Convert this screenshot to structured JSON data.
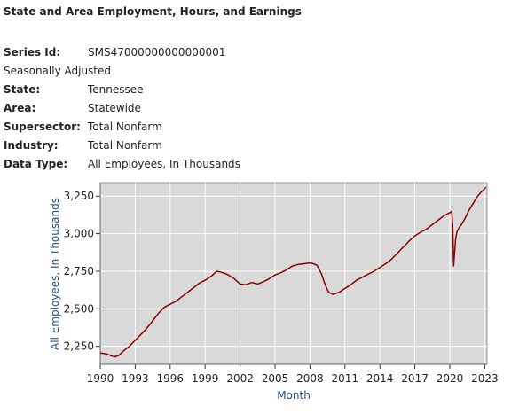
{
  "header": {
    "title": "State and Area Employment, Hours, and Earnings"
  },
  "meta": {
    "series_id_label": "Series Id:",
    "series_id": "SMS47000000000000001",
    "seasonal": "Seasonally Adjusted",
    "state_label": "State:",
    "state": "Tennessee",
    "area_label": "Area:",
    "area": "Statewide",
    "supersector_label": "Supersector:",
    "supersector": "Total Nonfarm",
    "industry_label": "Industry:",
    "industry": "Total Nonfarm",
    "data_type_label": "Data Type:",
    "data_type": "All Employees, In Thousands"
  },
  "chart_data": {
    "type": "line",
    "title": "",
    "xlabel": "Month",
    "ylabel": "All Employees, In Thousands",
    "xlim": [
      1990,
      2023.2
    ],
    "ylim": [
      2130,
      3340
    ],
    "x_ticks": [
      "1990",
      "1993",
      "1996",
      "1999",
      "2002",
      "2005",
      "2008",
      "2011",
      "2014",
      "2017",
      "2020",
      "2023"
    ],
    "y_ticks": [
      "2,250",
      "2,500",
      "2,750",
      "3,000",
      "3,250"
    ],
    "y_tick_values": [
      2250,
      2500,
      2750,
      3000,
      3250
    ],
    "grid": true,
    "line_color": "#8b0000",
    "series": [
      {
        "x": [
          1990.0,
          1990.5,
          1991.0,
          1991.3,
          1991.6,
          1992.0,
          1992.5,
          1993.0,
          1993.5,
          1994.0,
          1994.5,
          1995.0,
          1995.5,
          1996.0,
          1996.5,
          1997.0,
          1997.5,
          1998.0,
          1998.5,
          1999.0,
          1999.5,
          2000.0,
          2000.3,
          2000.7,
          2001.0,
          2001.5,
          2002.0,
          2002.5,
          2003.0,
          2003.5,
          2004.0,
          2004.5,
          2005.0,
          2005.5,
          2006.0,
          2006.5,
          2007.0,
          2007.5,
          2008.0,
          2008.3,
          2008.6,
          2009.0,
          2009.3,
          2009.6,
          2010.0,
          2010.5,
          2011.0,
          2011.5,
          2012.0,
          2012.5,
          2013.0,
          2013.5,
          2014.0,
          2014.5,
          2015.0,
          2015.5,
          2016.0,
          2016.5,
          2017.0,
          2017.5,
          2018.0,
          2018.5,
          2019.0,
          2019.5,
          2020.0,
          2020.17,
          2020.25,
          2020.33,
          2020.42,
          2020.5,
          2020.6,
          2020.8,
          2021.0,
          2021.3,
          2021.6,
          2022.0,
          2022.3,
          2022.6,
          2023.0,
          2023.1
        ],
        "y": [
          2205,
          2200,
          2185,
          2180,
          2190,
          2220,
          2250,
          2290,
          2330,
          2370,
          2420,
          2470,
          2510,
          2530,
          2550,
          2580,
          2610,
          2640,
          2670,
          2690,
          2715,
          2750,
          2745,
          2735,
          2725,
          2700,
          2665,
          2660,
          2675,
          2665,
          2680,
          2700,
          2725,
          2740,
          2760,
          2785,
          2795,
          2800,
          2805,
          2800,
          2790,
          2730,
          2660,
          2610,
          2595,
          2610,
          2635,
          2660,
          2690,
          2710,
          2730,
          2750,
          2775,
          2800,
          2830,
          2870,
          2910,
          2950,
          2985,
          3010,
          3030,
          3060,
          3090,
          3120,
          3140,
          3150,
          3050,
          2785,
          2880,
          2960,
          3010,
          3040,
          3060,
          3100,
          3150,
          3200,
          3240,
          3270,
          3300,
          3310
        ]
      }
    ]
  }
}
